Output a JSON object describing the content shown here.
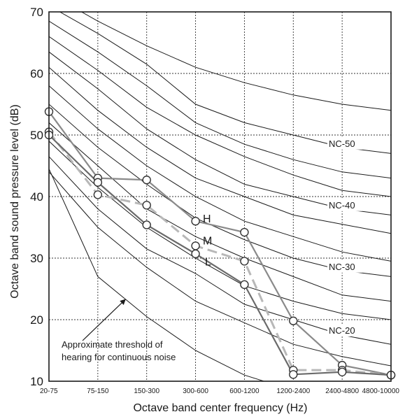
{
  "chart_data": {
    "type": "line",
    "xlabel": "Octave band center frequency (Hz)",
    "ylabel": "Octave band  sound pressure level (dB)",
    "ylim": [
      10,
      70
    ],
    "yticks": [
      10,
      20,
      30,
      40,
      50,
      60,
      70
    ],
    "grid": true,
    "categories": [
      "20-75",
      "75-150",
      "150-300",
      "300-600",
      "600-1200",
      "1200-2400",
      "2400-4800",
      "4800-10000"
    ],
    "nc_curves": [
      {
        "values": [
          73,
          68.5,
          64.5,
          61,
          58.5,
          56.5,
          55,
          54
        ],
        "label": ""
      },
      {
        "values": [
          71,
          66.5,
          61.5,
          55,
          52,
          50,
          48,
          47
        ],
        "label": "NC-50"
      },
      {
        "values": [
          68.5,
          63.5,
          58,
          52,
          48.5,
          46,
          44,
          43
        ],
        "label": ""
      },
      {
        "values": [
          66,
          60.5,
          54.5,
          50,
          46.5,
          43.5,
          41,
          40
        ],
        "label": ""
      },
      {
        "values": [
          63.5,
          57.5,
          51,
          46,
          42,
          40,
          38,
          37
        ],
        "label": "NC-40"
      },
      {
        "values": [
          61,
          54,
          48,
          43,
          40,
          37,
          35.5,
          34
        ],
        "label": ""
      },
      {
        "values": [
          58,
          51,
          45,
          40,
          36,
          33.5,
          31,
          29.5
        ],
        "label": ""
      },
      {
        "values": [
          55,
          48,
          42,
          36.5,
          33,
          30,
          28,
          27
        ],
        "label": "NC-30"
      },
      {
        "values": [
          52,
          45,
          38,
          33.5,
          30,
          27,
          24,
          23
        ],
        "label": ""
      },
      {
        "values": [
          49,
          41.5,
          35,
          30,
          25.5,
          23,
          21,
          20
        ],
        "label": ""
      },
      {
        "values": [
          46.5,
          38,
          31.5,
          27.5,
          22.5,
          20,
          17.5,
          16
        ],
        "label": "NC-20"
      },
      {
        "values": [
          44,
          35,
          28.5,
          23,
          19.5,
          16,
          14,
          12.5
        ],
        "label": ""
      }
    ],
    "threshold_curve": {
      "values": [
        44.5,
        27,
        20.5,
        15,
        11,
        8.5,
        7.5,
        7
      ],
      "annotation": [
        "Approximate threshold of",
        "hearing for continuous noise"
      ]
    },
    "series": [
      {
        "name": "H",
        "color": "#8a8a8a",
        "dash": "solid",
        "values": [
          53.8,
          43,
          42.7,
          36,
          34.2,
          19.8,
          12.6,
          11
        ]
      },
      {
        "name": "M",
        "color": "#b8b8b8",
        "dash": "dashed",
        "values": [
          50.5,
          40.3,
          38.6,
          32,
          29.5,
          11.8,
          11.8,
          11
        ]
      },
      {
        "name": "L",
        "color": "#6a6a6a",
        "dash": "solid",
        "values": [
          50,
          42.3,
          35.4,
          30.7,
          25.7,
          11.1,
          11.5,
          11
        ]
      }
    ]
  }
}
